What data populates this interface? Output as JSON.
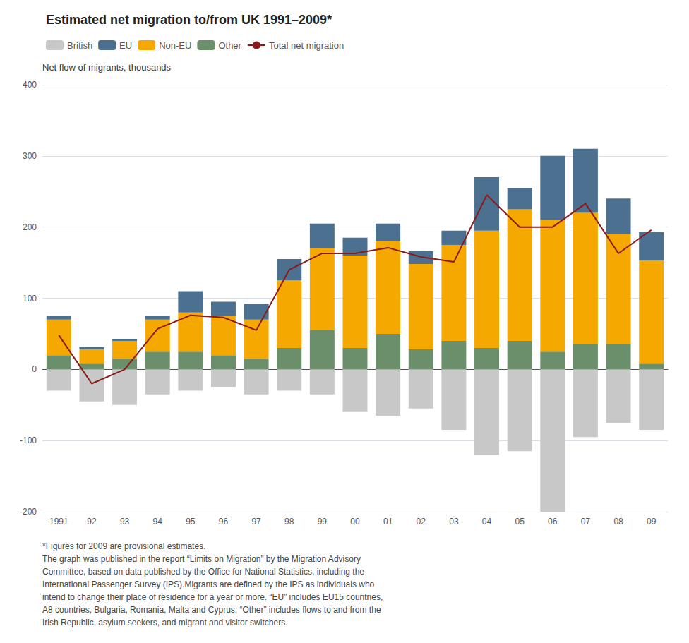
{
  "chart_data": {
    "type": "bar",
    "stacked": true,
    "title": "Estimated net migration to/from UK 1991–2009*",
    "ylabel": "Net flow of migrants, thousands",
    "categories": [
      "1991",
      "92",
      "93",
      "94",
      "95",
      "96",
      "97",
      "98",
      "99",
      "00",
      "01",
      "02",
      "03",
      "04",
      "05",
      "06",
      "07",
      "08",
      "09"
    ],
    "series": [
      {
        "name": "British",
        "type": "bar",
        "color": "#c8c8c8",
        "values": [
          -30,
          -45,
          -50,
          -35,
          -30,
          -25,
          -35,
          -30,
          -35,
          -60,
          -65,
          -55,
          -85,
          -120,
          -115,
          -200,
          -95,
          -75,
          -85
        ]
      },
      {
        "name": "EU",
        "type": "bar",
        "color": "#4c7090",
        "values": [
          5,
          3,
          3,
          5,
          30,
          20,
          22,
          30,
          35,
          25,
          25,
          18,
          20,
          75,
          30,
          90,
          90,
          50,
          40
        ]
      },
      {
        "name": "Non-EU",
        "type": "bar",
        "color": "#f5a800",
        "values": [
          50,
          20,
          25,
          45,
          55,
          55,
          55,
          95,
          115,
          130,
          130,
          120,
          135,
          165,
          185,
          185,
          185,
          155,
          145
        ]
      },
      {
        "name": "Other",
        "type": "bar",
        "color": "#6b8e6b",
        "values": [
          20,
          8,
          15,
          25,
          25,
          20,
          15,
          30,
          55,
          30,
          50,
          28,
          40,
          30,
          40,
          25,
          35,
          35,
          8
        ]
      },
      {
        "name": "Total net migration",
        "type": "line",
        "color": "#8b1a1a",
        "values": [
          48,
          -20,
          0,
          57,
          76,
          73,
          55,
          140,
          163,
          163,
          171,
          158,
          151,
          245,
          200,
          200,
          233,
          163,
          196
        ]
      }
    ],
    "ylim": [
      -200,
      400
    ],
    "yticks": [
      -200,
      -100,
      0,
      100,
      200,
      300,
      400
    ],
    "grid": true,
    "legend": "top",
    "annotations": [
      "*Figures for 2009 are provisional estimates.",
      "The graph was published in the report “Limits on Migration” by the Migration Advisory",
      "Committee, based on data published by the Office for National Statistics, including the",
      "International Passenger Survey (IPS).Migrants are defined by the IPS as individuals who",
      "intend to change their place of residence for a year or more. “EU” includes EU15 countries,",
      "A8 countries, Bulgaria, Romania, Malta and Cyprus. “Other” includes flows to and from the",
      "Irish Republic, asylum seekers, and migrant and visitor switchers."
    ]
  }
}
